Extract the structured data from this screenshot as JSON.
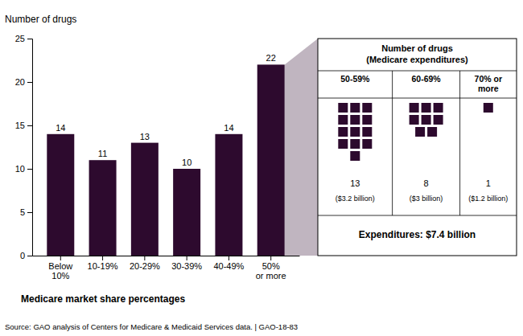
{
  "chart_data": [
    {
      "type": "bar",
      "categories": [
        "Below\n10%",
        "10-19%",
        "20-29%",
        "30-39%",
        "40-49%",
        "50%\nor more"
      ],
      "values": [
        14,
        11,
        13,
        10,
        14,
        22
      ],
      "color": "#2d0a2e",
      "ylim": [
        0,
        25
      ],
      "yticks": [
        0,
        5,
        10,
        15,
        20,
        25
      ],
      "ylabel": "Number of drugs",
      "xlabel": "Medicare market share percentages",
      "source": "Source: GAO analysis of Centers for Medicare & Medicaid Services data.  |  GAO-18-83",
      "grid": false,
      "data_labels": true
    },
    {
      "type": "waffle",
      "title": "Number of drugs\n(Medicare expenditures)",
      "categories": [
        "50-59%",
        "60-69%",
        "70% or\nmore"
      ],
      "values": [
        13,
        8,
        1
      ],
      "color": "#2d0a2e",
      "data_labels": true,
      "annotations": [
        "($3.2 billion)",
        "($3 billion)",
        "($1.2 billion)"
      ],
      "footer": "Expenditures: $7.4 billion"
    }
  ]
}
